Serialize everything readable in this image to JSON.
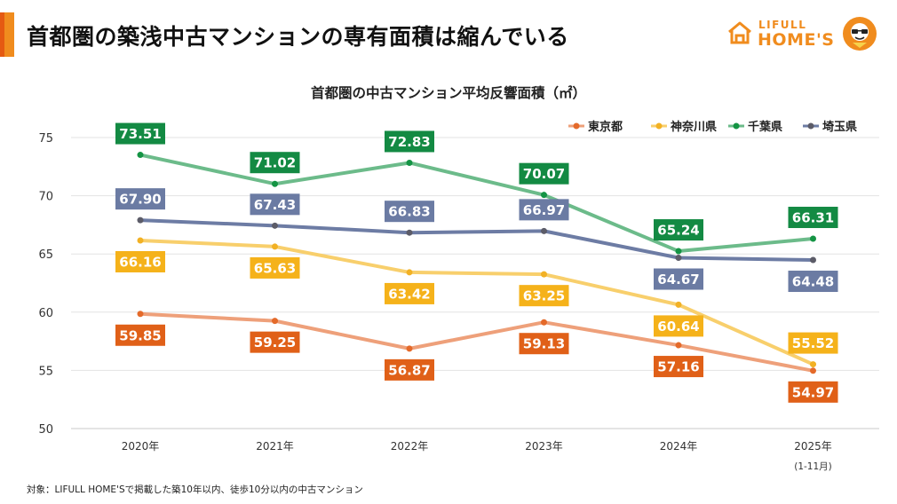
{
  "header": {
    "title": "首都圏の築浅中古マンションの専有面積は縮んでいる"
  },
  "logo": {
    "small_text": "LIFULL",
    "big_text": "HOME'S",
    "brand_color": "#f08c1e",
    "house_icon": "house-icon",
    "mascot_icon": "mascot-icon"
  },
  "footer": {
    "note": "対象：LIFULL HOME'Sで掲載した築10年以内、徒歩10分以内の中古マンション"
  },
  "chart_data": {
    "type": "line",
    "title": "首都圏の中古マンション平均反響面積（㎡）",
    "categories": [
      "2020年",
      "2021年",
      "2022年",
      "2023年",
      "2024年",
      "2025年"
    ],
    "category_sublabels": [
      "",
      "",
      "",
      "",
      "",
      "(1-11月)"
    ],
    "ylim": [
      50,
      75
    ],
    "yticks": [
      50,
      55,
      60,
      65,
      70,
      75
    ],
    "grid": true,
    "legend_position": "top-right",
    "series": [
      {
        "name": "東京都",
        "values": [
          59.85,
          59.25,
          56.87,
          59.13,
          57.16,
          54.97
        ],
        "labels": [
          "59.85",
          "59.25",
          "56.87",
          "59.13",
          "57.16",
          "54.97"
        ],
        "line_color": "#eea07a",
        "marker_color": "#e46a2a",
        "label_color": "#e06018",
        "label_side": [
          "below",
          "below",
          "below",
          "below",
          "below",
          "below"
        ]
      },
      {
        "name": "神奈川県",
        "values": [
          66.16,
          65.63,
          63.42,
          63.25,
          60.64,
          55.52
        ],
        "labels": [
          "66.16",
          "65.63",
          "63.42",
          "63.25",
          "60.64",
          "55.52"
        ],
        "line_color": "#f8cf6c",
        "marker_color": "#f2b124",
        "label_color": "#f5b21a",
        "label_side": [
          "below",
          "below",
          "below",
          "below",
          "below",
          "above"
        ]
      },
      {
        "name": "千葉県",
        "values": [
          73.51,
          71.02,
          72.83,
          70.07,
          65.24,
          66.31
        ],
        "labels": [
          "73.51",
          "71.02",
          "72.83",
          "70.07",
          "65.24",
          "66.31"
        ],
        "line_color": "#6cbb8a",
        "marker_color": "#149444",
        "label_color": "#138a43",
        "label_side": [
          "above",
          "above",
          "above",
          "above",
          "above",
          "above"
        ]
      },
      {
        "name": "埼玉県",
        "values": [
          67.9,
          67.43,
          66.83,
          66.97,
          64.67,
          64.48
        ],
        "labels": [
          "67.90",
          "67.43",
          "66.83",
          "66.97",
          "64.67",
          "64.48"
        ],
        "line_color": "#6d7ca4",
        "marker_color": "#5c5c68",
        "label_color": "#6b7ba3",
        "label_side": [
          "above",
          "above",
          "above",
          "above",
          "below",
          "below"
        ]
      }
    ]
  }
}
